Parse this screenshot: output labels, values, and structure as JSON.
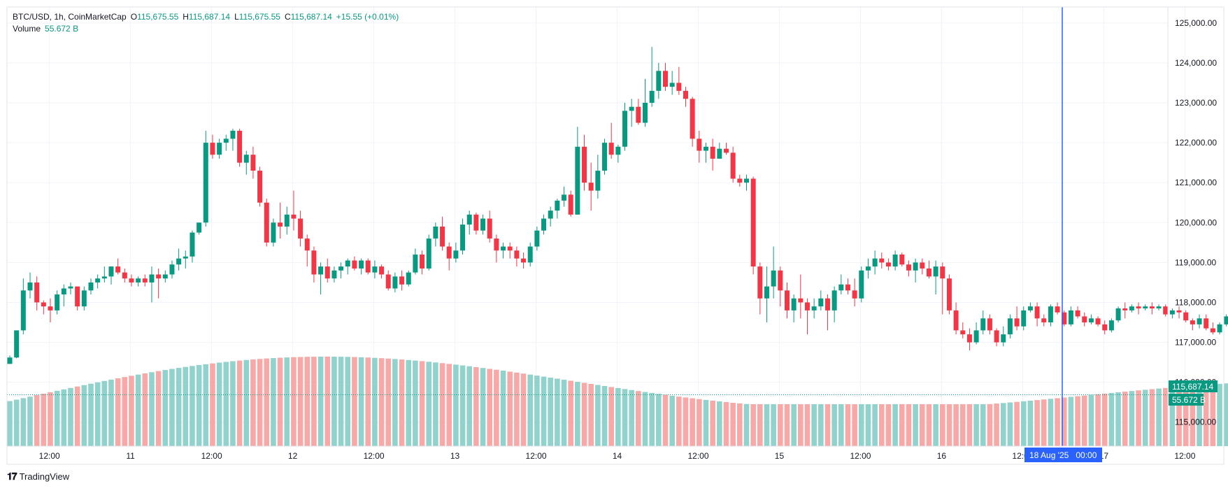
{
  "legend": {
    "symbol": "BTC/USD, 1h, CoinMarketCap",
    "open_key": "O",
    "open": "115,675.55",
    "high_key": "H",
    "high": "115,687.14",
    "low_key": "L",
    "low": "115,675.55",
    "close_key": "C",
    "close": "115,687.14",
    "change": "+15.55 (+0.01%)",
    "volume_label": "Volume",
    "volume_value": "55.672 B"
  },
  "price_axis": {
    "ticks": [
      "125,000.00",
      "124,000.00",
      "123,000.00",
      "122,000.00",
      "121,000.00",
      "120,000.00",
      "119,000.00",
      "118,000.00",
      "117,000.00",
      "116,000.00",
      "115,000.00"
    ],
    "last_price_badge": "115,687.14",
    "volume_badge": "55.672 B"
  },
  "time_axis": {
    "ticks": [
      "12:00",
      "11",
      "12:00",
      "12",
      "12:00",
      "13",
      "12:00",
      "14",
      "12:00",
      "15",
      "12:00",
      "16",
      "12:00",
      "17",
      "12:00",
      "12:00"
    ],
    "crosshair_label": "18 Aug '25   00:00"
  },
  "watermark": "TradingView",
  "colors": {
    "up": "#089981",
    "down": "#f23645",
    "up_volume": "#92d2cc",
    "down_volume": "#f7a9a7",
    "crosshair": "#2962ff",
    "grid": "#f0f3fa"
  },
  "chart_data": {
    "type": "candlestick",
    "symbol": "BTC/USD",
    "interval": "1h",
    "ylim": [
      114400,
      125400
    ],
    "x_start": "2025-08-10 08:00",
    "candles_ohlc": [
      [
        116460,
        116670,
        116460,
        116620
      ],
      [
        116620,
        117300,
        116600,
        117300
      ],
      [
        117300,
        118600,
        117200,
        118300
      ],
      [
        118300,
        118750,
        118100,
        118500
      ],
      [
        118500,
        118650,
        117800,
        118000
      ],
      [
        118000,
        118050,
        117700,
        117900
      ],
      [
        117900,
        118100,
        117500,
        117800
      ],
      [
        117800,
        118300,
        117700,
        118200
      ],
      [
        118200,
        118450,
        117900,
        118350
      ],
      [
        118350,
        118500,
        118200,
        118400
      ],
      [
        118400,
        118300,
        117800,
        117900
      ],
      [
        117900,
        118400,
        117800,
        118300
      ],
      [
        118300,
        118600,
        118200,
        118500
      ],
      [
        118500,
        118700,
        118350,
        118600
      ],
      [
        118600,
        118900,
        118500,
        118650
      ],
      [
        118650,
        118900,
        118450,
        118900
      ],
      [
        118900,
        119100,
        118700,
        118750
      ],
      [
        118750,
        118850,
        118500,
        118600
      ],
      [
        118600,
        118700,
        118400,
        118500
      ],
      [
        118500,
        118650,
        118400,
        118600
      ],
      [
        118600,
        118700,
        118400,
        118500
      ],
      [
        118500,
        118900,
        118000,
        118700
      ],
      [
        118700,
        118850,
        118100,
        118600
      ],
      [
        118600,
        118800,
        118500,
        118700
      ],
      [
        118700,
        119050,
        118600,
        118950
      ],
      [
        118950,
        119350,
        118800,
        119100
      ],
      [
        119100,
        119300,
        118850,
        119150
      ],
      [
        119150,
        119800,
        119000,
        119750
      ],
      [
        119750,
        120000,
        119700,
        120000
      ],
      [
        120000,
        122300,
        119900,
        122000
      ],
      [
        122000,
        122200,
        121600,
        121700
      ],
      [
        121700,
        122100,
        121600,
        122000
      ],
      [
        122000,
        122200,
        121800,
        122100
      ],
      [
        122100,
        122350,
        121800,
        122300
      ],
      [
        122300,
        122350,
        121400,
        121500
      ],
      [
        121500,
        121800,
        121200,
        121700
      ],
      [
        121700,
        121900,
        121100,
        121300
      ],
      [
        121300,
        121400,
        120400,
        120500
      ],
      [
        120500,
        120600,
        119400,
        119500
      ],
      [
        119500,
        120100,
        119400,
        120000
      ],
      [
        120000,
        120500,
        119600,
        119900
      ],
      [
        119900,
        120400,
        119700,
        120200
      ],
      [
        120200,
        120800,
        119800,
        120100
      ],
      [
        120100,
        120300,
        119400,
        119600
      ],
      [
        119600,
        119700,
        118900,
        119300
      ],
      [
        119300,
        119400,
        118500,
        118700
      ],
      [
        118700,
        119000,
        118200,
        118900
      ],
      [
        118900,
        119100,
        118500,
        118600
      ],
      [
        118600,
        118900,
        118500,
        118800
      ],
      [
        118800,
        119000,
        118600,
        118900
      ],
      [
        118900,
        119100,
        118700,
        119050
      ],
      [
        119050,
        119150,
        118800,
        118850
      ],
      [
        118850,
        119100,
        118700,
        119050
      ],
      [
        119050,
        119100,
        118700,
        118750
      ],
      [
        118750,
        119050,
        118600,
        118900
      ],
      [
        118900,
        118950,
        118600,
        118700
      ],
      [
        118700,
        118800,
        118300,
        118350
      ],
      [
        118350,
        118750,
        118250,
        118650
      ],
      [
        118650,
        118800,
        118300,
        118450
      ],
      [
        118450,
        118800,
        118400,
        118750
      ],
      [
        118750,
        119350,
        118700,
        119200
      ],
      [
        119200,
        119300,
        118700,
        118850
      ],
      [
        118850,
        119700,
        118800,
        119600
      ],
      [
        119600,
        120000,
        119400,
        119900
      ],
      [
        119900,
        120150,
        119300,
        119400
      ],
      [
        119400,
        119500,
        118800,
        119100
      ],
      [
        119100,
        119500,
        119000,
        119300
      ],
      [
        119300,
        120100,
        119200,
        119950
      ],
      [
        119950,
        120300,
        119700,
        120200
      ],
      [
        120200,
        120250,
        119700,
        119800
      ],
      [
        119800,
        120200,
        119700,
        120100
      ],
      [
        120100,
        120300,
        119500,
        119600
      ],
      [
        119600,
        119700,
        119000,
        119300
      ],
      [
        119300,
        119500,
        119100,
        119400
      ],
      [
        119400,
        119500,
        119100,
        119300
      ],
      [
        119300,
        119400,
        118900,
        119100
      ],
      [
        119100,
        119250,
        118850,
        119000
      ],
      [
        119000,
        119500,
        118900,
        119400
      ],
      [
        119400,
        119900,
        119300,
        119800
      ],
      [
        119800,
        120200,
        119700,
        120100
      ],
      [
        120100,
        120400,
        119900,
        120300
      ],
      [
        120300,
        120600,
        120100,
        120550
      ],
      [
        120550,
        120900,
        120400,
        120700
      ],
      [
        120700,
        120800,
        120150,
        120200
      ],
      [
        120200,
        122400,
        120200,
        121900
      ],
      [
        121900,
        122200,
        120800,
        121000
      ],
      [
        121000,
        121500,
        120300,
        120800
      ],
      [
        120800,
        121700,
        120600,
        121300
      ],
      [
        121300,
        122100,
        121200,
        122000
      ],
      [
        122000,
        122500,
        121600,
        121700
      ],
      [
        121700,
        121950,
        121500,
        121900
      ],
      [
        121900,
        123000,
        121800,
        122800
      ],
      [
        122800,
        123100,
        122400,
        122900
      ],
      [
        122900,
        123100,
        122450,
        122500
      ],
      [
        122500,
        123600,
        122400,
        123000
      ],
      [
        123000,
        124400,
        122900,
        123300
      ],
      [
        123300,
        124000,
        123100,
        123800
      ],
      [
        123800,
        124000,
        123300,
        123400
      ],
      [
        123400,
        123800,
        123200,
        123500
      ],
      [
        123500,
        123900,
        123200,
        123300
      ],
      [
        123300,
        123400,
        122900,
        123100
      ],
      [
        123100,
        123150,
        121900,
        122100
      ],
      [
        122100,
        122300,
        121500,
        121800
      ],
      [
        121800,
        122000,
        121500,
        121900
      ],
      [
        121900,
        122100,
        121300,
        121600
      ],
      [
        121600,
        122000,
        121600,
        121850
      ],
      [
        121850,
        122000,
        121700,
        121750
      ],
      [
        121750,
        121900,
        121000,
        121100
      ],
      [
        121100,
        121200,
        120900,
        121000
      ],
      [
        121000,
        121200,
        120800,
        121100
      ],
      [
        121100,
        121150,
        118700,
        118900
      ],
      [
        118900,
        119000,
        117700,
        118100
      ],
      [
        118100,
        118900,
        117500,
        118400
      ],
      [
        118400,
        119400,
        118100,
        118800
      ],
      [
        118800,
        118900,
        117900,
        118300
      ],
      [
        118300,
        118500,
        117600,
        117800
      ],
      [
        117800,
        118200,
        117500,
        118100
      ],
      [
        118100,
        118700,
        117600,
        118000
      ],
      [
        118000,
        118100,
        117200,
        117800
      ],
      [
        117800,
        118100,
        117600,
        117900
      ],
      [
        117900,
        118300,
        117800,
        118100
      ],
      [
        118100,
        118200,
        117300,
        117800
      ],
      [
        117800,
        118400,
        117500,
        118300
      ],
      [
        118300,
        118700,
        118200,
        118450
      ],
      [
        118450,
        118600,
        118200,
        118300
      ],
      [
        118300,
        118600,
        117900,
        118100
      ],
      [
        118100,
        118900,
        118000,
        118800
      ],
      [
        118800,
        119100,
        118600,
        118900
      ],
      [
        118900,
        119300,
        118700,
        119100
      ],
      [
        119100,
        119250,
        118850,
        119000
      ],
      [
        119000,
        119100,
        118800,
        118900
      ],
      [
        118900,
        119300,
        118800,
        119200
      ],
      [
        119200,
        119250,
        118900,
        118950
      ],
      [
        118950,
        119050,
        118650,
        118800
      ],
      [
        118800,
        119100,
        118500,
        119000
      ],
      [
        119000,
        119100,
        118700,
        118850
      ],
      [
        118850,
        119050,
        118600,
        118650
      ],
      [
        118650,
        119050,
        118200,
        118900
      ],
      [
        118900,
        119000,
        117700,
        118600
      ],
      [
        118600,
        118700,
        117700,
        117800
      ],
      [
        117800,
        118000,
        117200,
        117300
      ],
      [
        117300,
        117500,
        117100,
        117200
      ],
      [
        117200,
        117350,
        116800,
        117000
      ],
      [
        117000,
        117500,
        116950,
        117300
      ],
      [
        117300,
        117800,
        117200,
        117600
      ],
      [
        117600,
        117700,
        117200,
        117300
      ],
      [
        117300,
        117350,
        116900,
        117000
      ],
      [
        117000,
        117400,
        116900,
        117200
      ],
      [
        117200,
        117700,
        117100,
        117600
      ],
      [
        117600,
        117900,
        117300,
        117400
      ],
      [
        117400,
        117900,
        117300,
        117800
      ],
      [
        117800,
        118000,
        117750,
        117900
      ],
      [
        117900,
        118000,
        117400,
        117600
      ],
      [
        117600,
        117700,
        117400,
        117500
      ],
      [
        117500,
        117950,
        117400,
        117900
      ],
      [
        117900,
        118000,
        117700,
        117750
      ],
      [
        117750,
        117800,
        117400,
        117450
      ],
      [
        117450,
        117900,
        117400,
        117800
      ],
      [
        117800,
        117900,
        117600,
        117650
      ],
      [
        117650,
        117750,
        117400,
        117500
      ],
      [
        117500,
        117700,
        117450,
        117600
      ],
      [
        117600,
        117650,
        117400,
        117450
      ],
      [
        117450,
        117550,
        117200,
        117300
      ],
      [
        117300,
        117600,
        117250,
        117550
      ],
      [
        117550,
        117900,
        117500,
        117850
      ],
      [
        117850,
        118000,
        117600,
        117800
      ],
      [
        117800,
        117950,
        117750,
        117900
      ],
      [
        117900,
        118000,
        117700,
        117850
      ],
      [
        117850,
        117950,
        117800,
        117900
      ],
      [
        117900,
        118000,
        117700,
        117850
      ],
      [
        117850,
        117950,
        117800,
        117900
      ],
      [
        117900,
        117950,
        117650,
        117700
      ],
      [
        117700,
        117850,
        117600,
        117800
      ],
      [
        117800,
        117900,
        117600,
        117750
      ],
      [
        117750,
        117800,
        117500,
        117550
      ],
      [
        117550,
        117600,
        117300,
        117450
      ],
      [
        117450,
        117700,
        117350,
        117600
      ],
      [
        117600,
        117700,
        117300,
        117350
      ],
      [
        117350,
        117500,
        117200,
        117250
      ],
      [
        117250,
        117500,
        117200,
        117450
      ],
      [
        117450,
        117700,
        117400,
        117650
      ],
      [
        117650,
        117800,
        117500,
        117700
      ],
      [
        117700,
        118200,
        117650,
        118100
      ],
      [
        118100,
        118200,
        117950,
        118050
      ],
      [
        118050,
        118100,
        117900,
        117950
      ],
      [
        117950,
        118050,
        117850,
        117900
      ],
      [
        117900,
        118050,
        117800,
        118000
      ],
      [
        118000,
        118200,
        117600,
        117850
      ],
      [
        117850,
        118500,
        117800,
        118450
      ],
      [
        118450,
        118550,
        118300,
        118400
      ],
      [
        118400,
        118500,
        118300,
        118450
      ],
      [
        118450,
        118600,
        118100,
        118150
      ],
      [
        118150,
        118450,
        118100,
        118400
      ],
      [
        118400,
        118500,
        118100,
        118200
      ],
      [
        118200,
        118500,
        118100,
        118450
      ],
      [
        118450,
        118600,
        118200,
        118250
      ],
      [
        118250,
        118400,
        117900,
        118000
      ],
      [
        118000,
        118400,
        117900,
        118350
      ],
      [
        118350,
        118400,
        117800,
        117900
      ],
      [
        117900,
        118000,
        117400,
        117700
      ],
      [
        117700,
        118100,
        117600,
        117900
      ],
      [
        117900,
        118000,
        117400,
        117600
      ],
      [
        117600,
        118100,
        117300,
        117500
      ],
      [
        117500,
        117800,
        117450,
        117700
      ],
      [
        117700,
        117900,
        117500,
        117650
      ],
      [
        117650,
        118000,
        117600,
        117900
      ],
      [
        117900,
        118000,
        117800,
        117850
      ],
      [
        117850,
        118000,
        117500,
        117600
      ],
      [
        117600,
        117700,
        117100,
        117200
      ],
      [
        117200,
        117500,
        116100,
        116300
      ],
      [
        116300,
        116500,
        115500,
        115600
      ],
      [
        115600,
        115900,
        115200,
        115700
      ],
      [
        115675.55,
        115687.14,
        115675.55,
        115687.14
      ]
    ],
    "volume_units": "B"
  }
}
